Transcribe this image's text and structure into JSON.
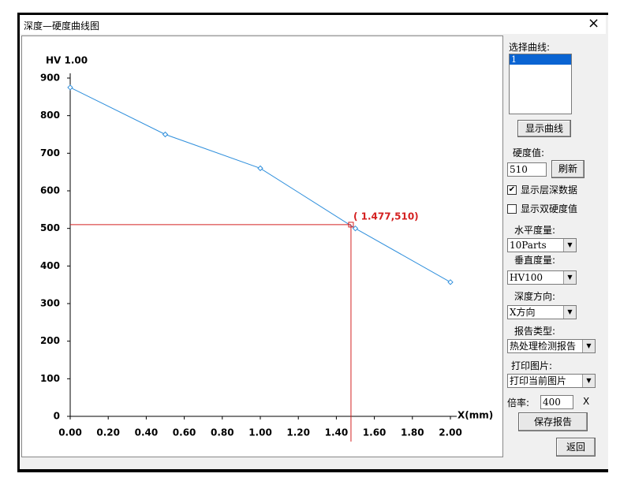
{
  "window": {
    "title": "深度—硬度曲线图"
  },
  "chart_data": {
    "type": "line",
    "y_label": "HV 1.00",
    "x_label": "X(mm)",
    "x": [
      0,
      0.5,
      1.0,
      1.5,
      2.0
    ],
    "values": [
      875,
      750,
      660,
      500,
      357
    ],
    "color": "#2f8fdc",
    "xlim": [
      0,
      2
    ],
    "ylim": [
      0,
      900
    ],
    "xticks": [
      {
        "value": 0,
        "label": "0.00"
      },
      {
        "value": 0.2,
        "label": "0.20"
      },
      {
        "value": 0.4,
        "label": "0.40"
      },
      {
        "value": 0.6,
        "label": "0.60"
      },
      {
        "value": 0.8,
        "label": "0.80"
      },
      {
        "value": 1.0,
        "label": "1.00"
      },
      {
        "value": 1.2,
        "label": "1.20"
      },
      {
        "value": 1.4,
        "label": "1.40"
      },
      {
        "value": 1.6,
        "label": "1.60"
      },
      {
        "value": 1.8,
        "label": "1.80"
      },
      {
        "value": 2.0,
        "label": "2.00"
      }
    ],
    "yticks": [
      0,
      100,
      200,
      300,
      400,
      500,
      600,
      700,
      800,
      900
    ],
    "cursor": {
      "text": "( 1.477,510)",
      "x": 1.477,
      "y": 510,
      "color": "#d42020"
    }
  },
  "panel": {
    "select_label": "选择曲线:",
    "curves": [
      "1"
    ],
    "show_button": "显示曲线",
    "hardness_label": "硬度值:",
    "hardness_value": "510",
    "refresh_button": "刷新",
    "checkboxes": [
      {
        "label": "显示层深数据",
        "checked": true
      },
      {
        "label": "显示双硬度值",
        "checked": false
      }
    ],
    "horizontal_label": "水平度量:",
    "horizontal_value": "10Parts",
    "vertical_label": "垂直度量:",
    "vertical_value": "HV100",
    "direction_label": "深度方向:",
    "direction_value": "X方向",
    "report_label": "报告类型:",
    "report_value": "热处理检测报告",
    "print_label": "打印图片:",
    "print_value": "打印当前图片",
    "ratio_label": "倍率:",
    "ratio_value": "400",
    "ratio_unit": "X",
    "save_button": "保存报告",
    "back_button": "返回"
  }
}
